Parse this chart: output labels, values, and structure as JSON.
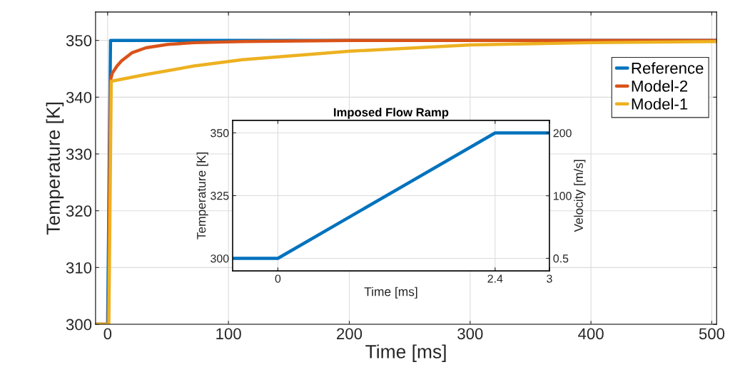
{
  "chart_data": [
    {
      "type": "line",
      "xlabel": "Time [ms]",
      "ylabel": "Temperature [K]",
      "xlim": [
        -10,
        504
      ],
      "ylim": [
        300,
        355
      ],
      "xticks": [
        0,
        100,
        200,
        300,
        400,
        500
      ],
      "yticks": [
        300,
        310,
        320,
        330,
        340,
        350
      ],
      "grid": true,
      "legend": "top right",
      "series": [
        {
          "name": "Reference",
          "color": "#0072bd",
          "x": [
            -10,
            0,
            2.4,
            504
          ],
          "values": [
            300,
            300,
            350,
            350
          ]
        },
        {
          "name": "Model-2",
          "color": "#d95319",
          "x": [
            -10,
            0.5,
            2.4,
            3.8,
            7.8,
            11.6,
            20,
            31.8,
            50,
            71.7,
            111.6,
            200,
            504
          ],
          "values": [
            300,
            300,
            343,
            344.2,
            345.5,
            346.4,
            347.8,
            348.7,
            349.3,
            349.6,
            349.8,
            350,
            350
          ]
        },
        {
          "name": "Model-1",
          "color": "#edb120",
          "x": [
            -10,
            1,
            3,
            31.8,
            71.7,
            111.6,
            201,
            300.6,
            400.6,
            504
          ],
          "values": [
            300,
            300,
            342.8,
            344.0,
            345.5,
            346.6,
            348.1,
            349.2,
            349.6,
            349.8
          ]
        }
      ]
    },
    {
      "type": "line",
      "title": "Imposed Flow Ramp",
      "xlabel": "Time [ms]",
      "ylabel": "Temperature [K]",
      "y2label": "Velocity [m/s]",
      "xlim": [
        -0.5,
        3
      ],
      "ylim": [
        295,
        355
      ],
      "xticks": [
        0,
        2.4,
        3
      ],
      "yticks": [
        300,
        325,
        350
      ],
      "y2lim": [
        -19.5,
        220
      ],
      "y2ticks": [
        0.5,
        100,
        200
      ],
      "grid": true,
      "series": [
        {
          "color": "#0072bd",
          "x": [
            -0.5,
            0,
            2.4,
            3
          ],
          "values": [
            300,
            300,
            350,
            350
          ]
        }
      ]
    }
  ]
}
